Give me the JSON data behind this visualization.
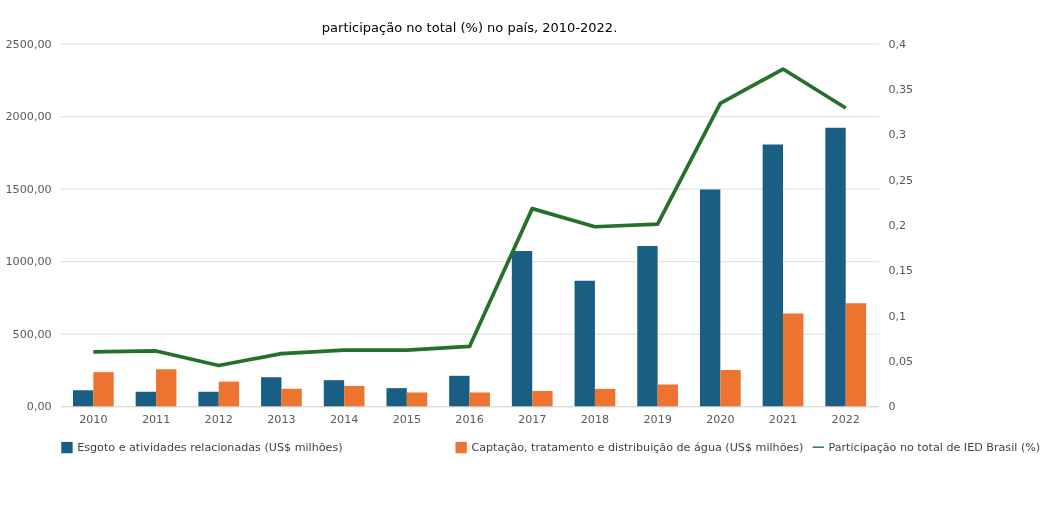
{
  "chart_data": {
    "type": "bar",
    "title": "participação no total (%) no país, 2010-2022.",
    "categories": [
      "2010",
      "2011",
      "2012",
      "2013",
      "2014",
      "2015",
      "2016",
      "2017",
      "2018",
      "2019",
      "2020",
      "2021",
      "2022"
    ],
    "series": [
      {
        "name": "Esgoto e atividades relacionadas (US$ milhões)",
        "color": "#1a5e84",
        "values": [
          110,
          100,
          100,
          200,
          180,
          125,
          210,
          1070,
          865,
          1105,
          1495,
          1805,
          1920
        ]
      },
      {
        "name": "Captação, tratamento e distribuição de água (US$ milhões)",
        "color": "#ed7430",
        "values": [
          235,
          255,
          170,
          120,
          140,
          95,
          95,
          105,
          120,
          150,
          250,
          640,
          710
        ]
      },
      {
        "name": "Participação no total de IED Brasil (%)",
        "type": "line",
        "axis": "y2",
        "color": "#25702b",
        "values": [
          0.06,
          0.061,
          0.045,
          0.058,
          0.062,
          0.062,
          0.066,
          0.218,
          0.198,
          0.201,
          0.334,
          0.372,
          0.329
        ]
      }
    ],
    "ylim": [
      0,
      2500
    ],
    "yticks": [
      {
        "value": 0,
        "label": "0,00"
      },
      {
        "value": 500,
        "label": "500,00"
      },
      {
        "value": 1000,
        "label": "1000,00"
      },
      {
        "value": 1500,
        "label": "1500,00"
      },
      {
        "value": 2000,
        "label": "2000,00"
      },
      {
        "value": 2500,
        "label": "2500,00"
      }
    ],
    "y2lim": [
      0,
      0.4
    ],
    "y2ticks": [
      0,
      {
        "value": 0.05,
        "label": "0,05"
      },
      {
        "value": 0.1,
        "label": "0,1"
      },
      {
        "value": 0.15,
        "label": "0,15"
      },
      {
        "value": 0.2,
        "label": "0,2"
      },
      {
        "value": 0.25,
        "label": "0,25"
      },
      {
        "value": 0.3,
        "label": "0,3"
      },
      {
        "value": 0.35,
        "label": "0,35"
      },
      {
        "value": 0.4,
        "label": "0,4"
      }
    ],
    "grid": "y",
    "legend": "bottom"
  }
}
